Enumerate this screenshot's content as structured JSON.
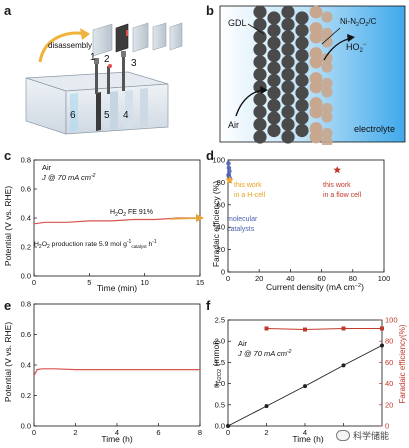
{
  "panel_labels": {
    "a": "a",
    "b": "b",
    "c": "c",
    "d": "d",
    "e": "e",
    "f": "f"
  },
  "panel_a": {
    "disassembly_label": "disassembly",
    "numbers": [
      "1",
      "2",
      "3",
      "4",
      "5",
      "6"
    ]
  },
  "panel_b": {
    "gdl_label": "GDL",
    "catalyst_label": "Ni-N2O2/C",
    "catalyst_label_parts": {
      "base": "Ni-N",
      "sub1": "2",
      "mid": "O",
      "sub2": "2",
      "tail": "/C"
    },
    "ho2_label_parts": {
      "base": "HO",
      "sub": "2",
      "sup": "−"
    },
    "air_label": "Air",
    "electrolyte_label": "electrolyte",
    "colors": {
      "electrolyte": "#4fb3ee",
      "gdl_particle": "#4a4a4a",
      "catalyst_particle": "#c9a78f"
    }
  },
  "chart_data": [
    {
      "panel": "c",
      "type": "line",
      "ylabel": "Potential (V vs. RHE)",
      "xlabel": "Time (min)",
      "xlim": [
        0,
        15
      ],
      "ylim": [
        0.0,
        0.8
      ],
      "xticks": [
        "0",
        "5",
        "10",
        "15"
      ],
      "yticks": [
        "0.0",
        "0.2",
        "0.4",
        "0.6",
        "0.8"
      ],
      "series": [
        {
          "x": [
            0,
            1,
            3,
            5,
            7,
            9,
            11,
            13,
            15
          ],
          "y": [
            0.36,
            0.37,
            0.37,
            0.38,
            0.38,
            0.39,
            0.39,
            0.4,
            0.4
          ],
          "color": "#d9534f"
        }
      ],
      "annotations": {
        "line1": "Air",
        "line2_parts": {
          "base": "J @ 70 mA cm",
          "sup": "-2"
        },
        "fe_parts": {
          "base": "H",
          "sub": "2",
          "mid": "O",
          "sub2": "2",
          "tail": " FE 91%"
        },
        "rate_parts": {
          "base": "H",
          "sub": "2",
          "mid": "O",
          "sub2": "2",
          "tail": " production rate 5.9 mol g",
          "sup": "-1",
          "sub3": "catalyst",
          "tail2": " h",
          "sup2": "-1"
        }
      },
      "arrow_color": "#e8a43a"
    },
    {
      "panel": "d",
      "type": "scatter",
      "ylabel": "Faradaic efficiency (%)",
      "xlabel_parts": {
        "base": "Current density  (mA cm",
        "sup": "−2",
        "tail": ")"
      },
      "xlim": [
        0,
        100
      ],
      "ylim": [
        0,
        100
      ],
      "xticks": [
        "0",
        "20",
        "40",
        "60",
        "80",
        "100"
      ],
      "yticks": [
        "0",
        "20",
        "40",
        "60",
        "80",
        "100"
      ],
      "series": [
        {
          "name": "molecular catalysts",
          "x": [
            0.3,
            0.6,
            0.9,
            0.5,
            1.0,
            0.4
          ],
          "y": [
            97,
            93,
            90,
            87,
            84,
            86
          ],
          "color": "#4a5fb0",
          "marker": "circle"
        },
        {
          "name": "this work in a H-cell",
          "x": [
            1.0
          ],
          "y": [
            82
          ],
          "color": "#f0a830",
          "marker": "star"
        },
        {
          "name": "this work in a flow cell",
          "x": [
            70
          ],
          "y": [
            91
          ],
          "color": "#c0392b",
          "marker": "star"
        }
      ],
      "labels": {
        "hcell": [
          "this work",
          "in a H-cell"
        ],
        "flow": [
          "this work",
          "in a flow cell"
        ],
        "molecular": [
          "molecular",
          "catalysts"
        ]
      }
    },
    {
      "panel": "e",
      "type": "line",
      "ylabel": "Potential (V vs. RHE)",
      "xlabel": "Time (h)",
      "xlim": [
        0,
        8
      ],
      "ylim": [
        0.0,
        0.8
      ],
      "xticks": [
        "0",
        "2",
        "4",
        "6",
        "8"
      ],
      "yticks": [
        "0.0",
        "0.2",
        "0.4",
        "0.6",
        "0.8"
      ],
      "series": [
        {
          "x": [
            0,
            0.15,
            0.4,
            1,
            2,
            3,
            4,
            5,
            6,
            7,
            8
          ],
          "y": [
            0.33,
            0.37,
            0.375,
            0.375,
            0.37,
            0.37,
            0.37,
            0.37,
            0.37,
            0.37,
            0.37
          ],
          "color": "#d9534f"
        }
      ]
    },
    {
      "panel": "f",
      "type": "line",
      "ylabel_left_parts": {
        "base": "n",
        "sub": "H2O2",
        "tail": " (mmol)"
      },
      "ylabel_right": "Faradaic efficiency(%)",
      "xlabel": "Time (h)",
      "xlim": [
        0,
        8
      ],
      "ylim_left": [
        0.0,
        2.5
      ],
      "ylim_right": [
        0,
        100
      ],
      "xticks": [
        "0",
        "2",
        "4",
        "6"
      ],
      "yticks_left": [
        "0.0",
        "0.5",
        "1.0",
        "1.5",
        "2.0",
        "2.5"
      ],
      "yticks_right": [
        "0",
        "20",
        "40",
        "60",
        "80",
        "100"
      ],
      "series": [
        {
          "axis": "left",
          "x": [
            0,
            2,
            4,
            6,
            8
          ],
          "y": [
            0.0,
            0.47,
            0.94,
            1.43,
            1.9
          ],
          "color": "#222222"
        },
        {
          "axis": "right",
          "x": [
            2,
            4,
            6,
            8
          ],
          "y": [
            92,
            91,
            92,
            92
          ],
          "color": "#c0392b"
        }
      ],
      "annotations": {
        "line1": "Air",
        "line2_parts": {
          "base": "J @ 70 mA cm",
          "sup": "-2"
        }
      }
    }
  ],
  "watermark": {
    "text": "科学储能"
  }
}
